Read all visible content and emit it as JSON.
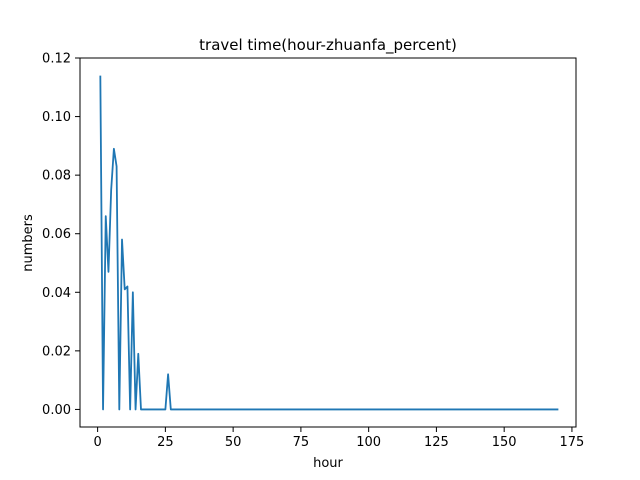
{
  "chart_data": {
    "type": "line",
    "title": "travel time(hour-zhuanfa_percent)",
    "xlabel": "hour",
    "ylabel": "numbers",
    "xlim": [
      -6.5,
      176.5
    ],
    "ylim": [
      -0.006,
      0.12
    ],
    "xticks": [
      0,
      25,
      50,
      75,
      100,
      125,
      150,
      175
    ],
    "xtick_labels": [
      "0",
      "25",
      "50",
      "75",
      "100",
      "125",
      "150",
      "175"
    ],
    "yticks": [
      0.0,
      0.02,
      0.04,
      0.06,
      0.08,
      0.1,
      0.12
    ],
    "ytick_labels": [
      "0.00",
      "0.02",
      "0.04",
      "0.06",
      "0.08",
      "0.10",
      "0.12"
    ],
    "grid": false,
    "series": [
      {
        "color": "#1f77b4",
        "x": [
          1,
          2,
          3,
          4,
          5,
          6,
          7,
          8,
          9,
          10,
          11,
          12,
          13,
          14,
          15,
          16,
          17,
          18,
          19,
          20,
          21,
          22,
          23,
          24,
          25,
          26,
          27,
          170
        ],
        "y": [
          0.114,
          0.0,
          0.066,
          0.047,
          0.075,
          0.089,
          0.083,
          0.0,
          0.058,
          0.041,
          0.042,
          0.0,
          0.04,
          0.0,
          0.019,
          0.0,
          0.0,
          0.0,
          0.0,
          0.0,
          0.0,
          0.0,
          0.0,
          0.0,
          0.0,
          0.012,
          0.0,
          0.0
        ]
      }
    ]
  }
}
